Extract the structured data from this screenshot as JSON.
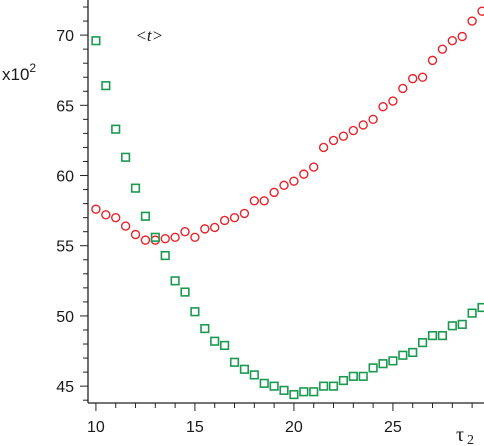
{
  "chart_data": {
    "type": "scatter",
    "xlabel": "τ",
    "xlabel_subscript": "2",
    "y_multiplier": "x10",
    "y_multiplier_exp": "2",
    "xlim": [
      9.6,
      29.6
    ],
    "ylim": [
      43.8,
      72.5
    ],
    "xticks": [
      10,
      15,
      20,
      25
    ],
    "yticks": [
      45,
      50,
      55,
      60,
      65,
      70
    ],
    "grid": false,
    "annotations": [
      {
        "text": "<t>",
        "x": 12.3,
        "y": 70.0
      }
    ],
    "series": [
      {
        "marker": "circle",
        "color": "#e8232a",
        "x": [
          10,
          10.5,
          11,
          11.5,
          12,
          12.5,
          13,
          13.5,
          14,
          14.5,
          15,
          15.5,
          16,
          16.5,
          17,
          17.5,
          18,
          18.5,
          19,
          19.5,
          20,
          20.5,
          21,
          21.5,
          22,
          22.5,
          23,
          23.5,
          24,
          24.5,
          25,
          25.5,
          26,
          26.5,
          27,
          27.5,
          28,
          28.5,
          29,
          29.5
        ],
        "y": [
          57.6,
          57.2,
          57.0,
          56.4,
          55.8,
          55.4,
          55.4,
          55.5,
          55.6,
          56.0,
          55.6,
          56.2,
          56.3,
          56.8,
          57.0,
          57.3,
          58.2,
          58.2,
          58.8,
          59.3,
          59.6,
          60.1,
          60.6,
          62.0,
          62.5,
          62.8,
          63.2,
          63.6,
          64.0,
          64.9,
          65.3,
          66.2,
          66.9,
          67.0,
          68.2,
          69.0,
          69.6,
          69.9,
          71.0,
          71.7
        ]
      },
      {
        "marker": "square",
        "color": "#1a9a50",
        "x": [
          10,
          10.5,
          11,
          11.5,
          12,
          12.5,
          13,
          13.5,
          14,
          14.5,
          15,
          15.5,
          16,
          16.5,
          17,
          17.5,
          18,
          18.5,
          19,
          19.5,
          20,
          20.5,
          21,
          21.5,
          22,
          22.5,
          23,
          23.5,
          24,
          24.5,
          25,
          25.5,
          26,
          26.5,
          27,
          27.5,
          28,
          28.5,
          29,
          29.5
        ],
        "y": [
          69.6,
          66.4,
          63.3,
          61.3,
          59.1,
          57.1,
          55.6,
          54.3,
          52.5,
          51.7,
          50.3,
          49.1,
          48.2,
          47.9,
          46.7,
          46.2,
          45.8,
          45.2,
          45.0,
          44.7,
          44.4,
          44.6,
          44.6,
          45.0,
          45.0,
          45.4,
          45.7,
          45.7,
          46.3,
          46.6,
          46.8,
          47.2,
          47.4,
          48.1,
          48.6,
          48.6,
          49.3,
          49.4,
          50.2,
          50.6
        ]
      }
    ]
  }
}
